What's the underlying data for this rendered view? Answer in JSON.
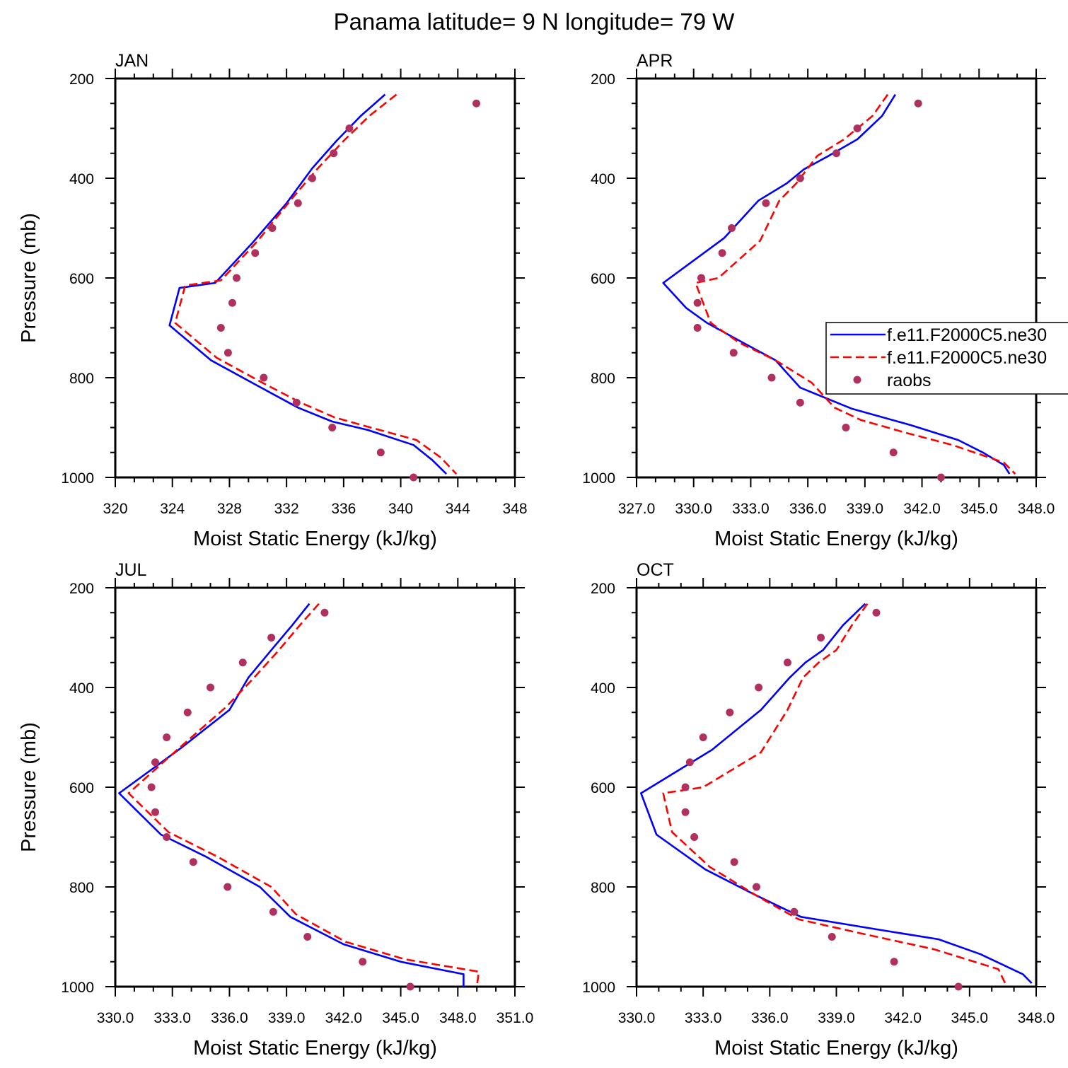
{
  "title": "Panama  latitude= 9 N longitude= 79 W",
  "colors": {
    "model1": "#0000ff",
    "model2": "#ff0000",
    "raobs": "#b03060"
  },
  "legend": {
    "entries": [
      {
        "label": "f.e11.F2000C5.ne30",
        "style": "solid",
        "color": "#0000ff"
      },
      {
        "label": "f.e11.F2000C5.ne30",
        "style": "dashed",
        "color": "#ff0000"
      },
      {
        "label": "raobs",
        "style": "marker",
        "color": "#b03060"
      }
    ],
    "location": "right edge of APR panel"
  },
  "chart_data": [
    {
      "type": "line",
      "panel_title": "JAN",
      "xlabel": "Moist Static Energy (kJ/kg)",
      "ylabel": "Pressure (mb)",
      "xlim": [
        320,
        348
      ],
      "ylim": [
        200,
        1000
      ],
      "y_reversed": true,
      "xticks": [
        "320",
        "324",
        "328",
        "332",
        "336",
        "340",
        "344",
        "348"
      ],
      "yticks": [
        "200",
        "400",
        "600",
        "800",
        "1000"
      ],
      "series": [
        {
          "style": "solid",
          "color": "#0000ff",
          "x": [
            338.9,
            337.2,
            335.5,
            333.8,
            332.0,
            329.6,
            327.0,
            324.5,
            323.8,
            326.7,
            329.9,
            332.8,
            335.2,
            337.7,
            340.9,
            342.2,
            343.2
          ],
          "y": [
            232,
            275,
            325,
            380,
            450,
            530,
            610,
            620,
            695,
            765,
            815,
            860,
            888,
            905,
            935,
            965,
            993
          ]
        },
        {
          "style": "dashed",
          "color": "#ff0000",
          "x": [
            339.7,
            337.8,
            336.0,
            334.2,
            332.4,
            330.0,
            327.4,
            324.9,
            324.2,
            327.1,
            330.3,
            333.0,
            335.4,
            337.9,
            341.1,
            342.8,
            343.9
          ],
          "y": [
            232,
            275,
            325,
            380,
            440,
            525,
            605,
            615,
            690,
            760,
            810,
            850,
            880,
            900,
            925,
            960,
            993
          ]
        },
        {
          "style": "marker",
          "color": "#b03060",
          "x": [
            345.3,
            336.4,
            335.3,
            333.8,
            332.8,
            331.0,
            329.8,
            328.5,
            328.2,
            327.4,
            327.9,
            330.4,
            332.7,
            335.2,
            338.6,
            340.9
          ],
          "y": [
            250,
            300,
            350,
            400,
            450,
            500,
            550,
            600,
            650,
            700,
            750,
            800,
            850,
            900,
            950,
            1000
          ]
        }
      ]
    },
    {
      "type": "line",
      "panel_title": "APR",
      "xlabel": "Moist Static Energy (kJ/kg)",
      "ylabel": "",
      "xlim": [
        327,
        348
      ],
      "ylim": [
        200,
        1000
      ],
      "y_reversed": true,
      "xticks": [
        "327.0",
        "330.0",
        "333.0",
        "336.0",
        "339.0",
        "342.0",
        "345.0",
        "348.0"
      ],
      "yticks": [
        "200",
        "400",
        "600",
        "800",
        "1000"
      ],
      "series": [
        {
          "style": "solid",
          "color": "#0000ff",
          "x": [
            340.6,
            339.9,
            338.6,
            337.1,
            335.8,
            334.9,
            333.4,
            331.6,
            328.4,
            329.6,
            330.7,
            332.6,
            334.3,
            335.6,
            338.3,
            341.4,
            343.9,
            345.2,
            346.3,
            346.6
          ],
          "y": [
            232,
            275,
            322,
            355,
            382,
            410,
            445,
            520,
            610,
            660,
            690,
            730,
            765,
            820,
            862,
            895,
            925,
            950,
            975,
            993
          ]
        },
        {
          "style": "dashed",
          "color": "#ff0000",
          "x": [
            340.2,
            339.4,
            337.9,
            336.5,
            336.0,
            335.4,
            334.5,
            333.5,
            331.3,
            330.1,
            330.9,
            332.4,
            334.3,
            336.2,
            337.4,
            338.8,
            341.1,
            343.6,
            346.3,
            346.9
          ],
          "y": [
            232,
            275,
            322,
            355,
            380,
            410,
            445,
            525,
            600,
            610,
            690,
            730,
            765,
            810,
            860,
            885,
            910,
            935,
            970,
            993
          ]
        },
        {
          "style": "marker",
          "color": "#b03060",
          "x": [
            341.8,
            338.6,
            337.5,
            335.6,
            333.8,
            332.0,
            331.5,
            330.4,
            330.2,
            330.2,
            332.1,
            334.1,
            335.6,
            338.0,
            340.5,
            343.0
          ],
          "y": [
            250,
            300,
            350,
            400,
            450,
            500,
            550,
            600,
            650,
            700,
            750,
            800,
            850,
            900,
            950,
            1000
          ]
        }
      ]
    },
    {
      "type": "line",
      "panel_title": "JUL",
      "xlabel": "Moist Static Energy (kJ/kg)",
      "ylabel": "Pressure (mb)",
      "xlim": [
        330,
        351
      ],
      "ylim": [
        200,
        1000
      ],
      "y_reversed": true,
      "xticks": [
        "330.0",
        "333.0",
        "336.0",
        "339.0",
        "342.0",
        "345.0",
        "348.0",
        "351.0"
      ],
      "yticks": [
        "200",
        "400",
        "600",
        "800",
        "1000"
      ],
      "series": [
        {
          "style": "solid",
          "color": "#0000ff",
          "x": [
            340.2,
            339.3,
            338.2,
            337.0,
            336.0,
            333.5,
            330.2,
            332.4,
            334.8,
            337.6,
            339.2,
            342.0,
            345.0,
            348.3,
            348.3
          ],
          "y": [
            232,
            275,
            325,
            380,
            445,
            520,
            612,
            695,
            740,
            800,
            860,
            915,
            950,
            975,
            1000
          ]
        },
        {
          "style": "dashed",
          "color": "#ff0000",
          "x": [
            340.7,
            339.7,
            338.6,
            337.3,
            335.8,
            333.4,
            330.7,
            332.8,
            335.4,
            338.2,
            339.5,
            342.1,
            345.2,
            349.1,
            349.0
          ],
          "y": [
            232,
            275,
            325,
            380,
            440,
            520,
            612,
            690,
            740,
            800,
            855,
            910,
            945,
            970,
            1000
          ]
        },
        {
          "style": "marker",
          "color": "#b03060",
          "x": [
            341.0,
            338.2,
            336.7,
            335.0,
            333.8,
            332.7,
            332.1,
            331.9,
            332.1,
            332.7,
            334.1,
            335.9,
            338.3,
            340.1,
            343.0,
            345.5
          ],
          "y": [
            250,
            300,
            350,
            400,
            450,
            500,
            550,
            600,
            650,
            700,
            750,
            800,
            850,
            900,
            950,
            1000
          ]
        }
      ]
    },
    {
      "type": "line",
      "panel_title": "OCT",
      "xlabel": "Moist Static Energy (kJ/kg)",
      "ylabel": "",
      "xlim": [
        330,
        348
      ],
      "ylim": [
        200,
        1000
      ],
      "y_reversed": true,
      "xticks": [
        "330.0",
        "333.0",
        "336.0",
        "339.0",
        "342.0",
        "345.0",
        "348.0"
      ],
      "yticks": [
        "200",
        "400",
        "600",
        "800",
        "1000"
      ],
      "series": [
        {
          "style": "solid",
          "color": "#0000ff",
          "x": [
            340.3,
            339.3,
            338.4,
            337.6,
            336.9,
            335.6,
            333.4,
            330.2,
            330.9,
            333.1,
            335.3,
            337.4,
            340.8,
            343.6,
            345.5,
            347.4,
            347.8
          ],
          "y": [
            232,
            275,
            325,
            350,
            380,
            445,
            525,
            612,
            695,
            765,
            815,
            860,
            885,
            905,
            935,
            975,
            993
          ]
        },
        {
          "style": "dashed",
          "color": "#ff0000",
          "x": [
            340.4,
            339.7,
            339.0,
            338.2,
            337.5,
            336.8,
            335.6,
            333.0,
            331.2,
            331.6,
            333.3,
            335.5,
            337.3,
            340.3,
            343.4,
            346.3,
            346.6
          ],
          "y": [
            232,
            275,
            325,
            350,
            380,
            445,
            530,
            600,
            612,
            690,
            760,
            820,
            865,
            895,
            925,
            965,
            993
          ]
        },
        {
          "style": "marker",
          "color": "#b03060",
          "x": [
            340.8,
            338.3,
            336.8,
            335.5,
            334.2,
            333.0,
            332.4,
            332.2,
            332.2,
            332.6,
            334.4,
            335.4,
            337.1,
            338.8,
            341.6,
            344.5
          ],
          "y": [
            250,
            300,
            350,
            400,
            450,
            500,
            550,
            600,
            650,
            700,
            750,
            800,
            850,
            900,
            950,
            1000
          ]
        }
      ]
    }
  ]
}
